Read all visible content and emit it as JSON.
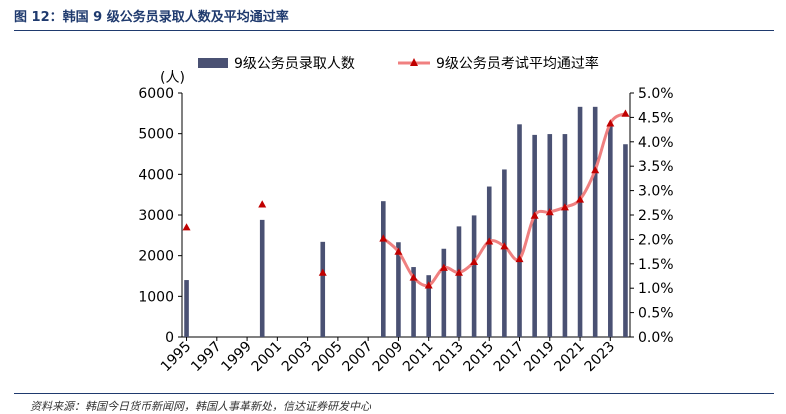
{
  "figure": {
    "title": "图 12：韩国 9 级公务员录取人数及平均通过率",
    "source": "资料来源：韩国今日货币新闻网，韩国人事革新处，信达证券研发中心"
  },
  "chart_data": {
    "type": "bar+line",
    "title": "",
    "ylabel_left": "(人)",
    "ylim_left": [
      0,
      6000
    ],
    "yticks_left": [
      "0",
      "1000",
      "2000",
      "3000",
      "4000",
      "5000",
      "6000"
    ],
    "ylim_right": [
      0,
      5.0
    ],
    "yticks_right": [
      "0.0%",
      "0.5%",
      "1.0%",
      "1.5%",
      "2.0%",
      "2.5%",
      "3.0%",
      "3.5%",
      "4.0%",
      "4.5%",
      "5.0%"
    ],
    "xlim": [
      1995,
      2024
    ],
    "xticks": [
      "1995",
      "1997",
      "1999",
      "2001",
      "2003",
      "2005",
      "2007",
      "2009",
      "2011",
      "2013",
      "2015",
      "2017",
      "2019",
      "2021",
      "2023"
    ],
    "legend_position": "top",
    "series": [
      {
        "name": "9级公务员录取人数",
        "type": "bar",
        "color": "#4a5173",
        "x": [
          1995,
          2000,
          2004,
          2008,
          2009,
          2010,
          2011,
          2012,
          2013,
          2014,
          2015,
          2016,
          2017,
          2018,
          2019,
          2020,
          2021,
          2022,
          2023,
          2024
        ],
        "values": [
          1400,
          2880,
          2340,
          3340,
          2330,
          1720,
          1520,
          2170,
          2720,
          2990,
          3700,
          4120,
          5230,
          4970,
          4990,
          4990,
          5660,
          5660,
          5230,
          4740
        ]
      },
      {
        "name": "9级公务员考试平均通过率",
        "type": "line",
        "color": "#f08080",
        "marker_color": "#c00000",
        "x": [
          1995,
          2000,
          2004,
          2008,
          2009,
          2010,
          2011,
          2012,
          2013,
          2014,
          2015,
          2016,
          2017,
          2018,
          2019,
          2020,
          2021,
          2022,
          2023,
          2024
        ],
        "values": [
          2.25,
          2.72,
          1.32,
          2.02,
          1.75,
          1.22,
          1.06,
          1.42,
          1.32,
          1.54,
          1.96,
          1.86,
          1.6,
          2.49,
          2.56,
          2.66,
          2.82,
          3.42,
          4.38,
          4.58
        ],
        "connected_from_index": 3
      }
    ]
  }
}
